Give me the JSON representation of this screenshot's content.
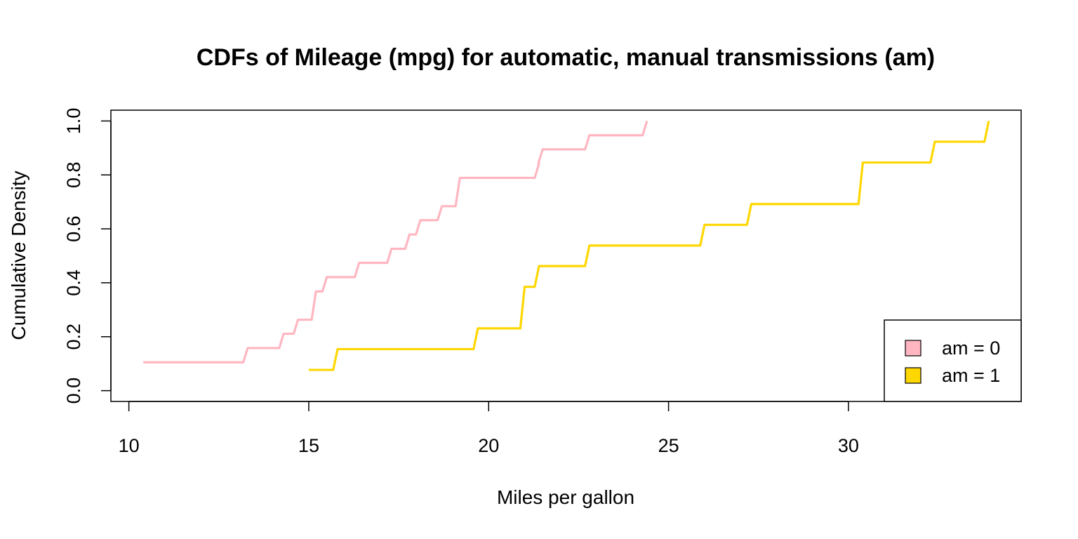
{
  "chart_data": {
    "type": "line",
    "step": true,
    "title": "CDFs of Mileage (mpg) for automatic, manual transmissions (am)",
    "xlabel": "Miles per gallon",
    "ylabel": "Cumulative Density",
    "xlim": [
      9.5,
      34.8
    ],
    "ylim": [
      -0.04,
      1.04
    ],
    "xticks": [
      10,
      15,
      20,
      25,
      30
    ],
    "yticks": [
      0.0,
      0.2,
      0.4,
      0.6,
      0.8,
      1.0
    ],
    "xtick_labels": [
      "10",
      "15",
      "20",
      "25",
      "30"
    ],
    "ytick_labels": [
      "0.0",
      "0.2",
      "0.4",
      "0.6",
      "0.8",
      "1.0"
    ],
    "grid": false,
    "legend_position": "bottom-right",
    "series": [
      {
        "name": "am = 0",
        "color": "#FFB6C1",
        "x": [
          10.4,
          13.3,
          14.3,
          14.7,
          15.2,
          15.5,
          16.4,
          17.3,
          17.8,
          18.1,
          18.7,
          19.2,
          21.4,
          21.5,
          22.8,
          24.4
        ],
        "y": [
          0.105,
          0.158,
          0.211,
          0.263,
          0.368,
          0.421,
          0.474,
          0.526,
          0.579,
          0.632,
          0.684,
          0.789,
          0.842,
          0.895,
          0.947,
          1.0
        ]
      },
      {
        "name": "am = 1",
        "color": "#FFD700",
        "x": [
          15.0,
          15.8,
          19.7,
          21.0,
          21.4,
          22.8,
          26.0,
          27.3,
          30.4,
          32.4,
          33.9
        ],
        "y": [
          0.077,
          0.154,
          0.231,
          0.385,
          0.462,
          0.538,
          0.615,
          0.692,
          0.846,
          0.923,
          1.0
        ]
      }
    ]
  }
}
